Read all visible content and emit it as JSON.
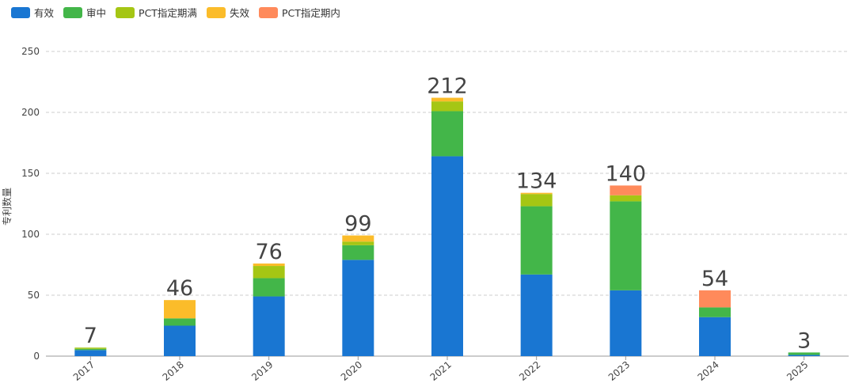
{
  "chart_data": {
    "type": "bar",
    "stacked": true,
    "categories": [
      "2017",
      "2018",
      "2019",
      "2020",
      "2021",
      "2022",
      "2023",
      "2024",
      "2025"
    ],
    "series": [
      {
        "name": "有效",
        "color": "#1976d2",
        "values": [
          5,
          25,
          49,
          79,
          164,
          67,
          54,
          32,
          1
        ]
      },
      {
        "name": "审中",
        "color": "#43b649",
        "values": [
          1,
          6,
          15,
          12,
          37,
          56,
          73,
          8,
          2
        ]
      },
      {
        "name": "PCT指定期满",
        "color": "#a5c614",
        "values": [
          1,
          0,
          10,
          3,
          8,
          10,
          5,
          0,
          0
        ]
      },
      {
        "name": "失效",
        "color": "#fbbc2a",
        "values": [
          0,
          15,
          2,
          5,
          3,
          1,
          0,
          0,
          0
        ]
      },
      {
        "name": "PCT指定期内",
        "color": "#ff8a5b",
        "values": [
          0,
          0,
          0,
          0,
          0,
          0,
          8,
          14,
          0
        ]
      }
    ],
    "totals": [
      "7",
      "46",
      "76",
      "99",
      "212",
      "134",
      "140",
      "54",
      "3"
    ],
    "ylabel": "专利数量",
    "ylim": [
      0,
      250
    ],
    "yticks": [
      "0",
      "50",
      "100",
      "150",
      "200",
      "250"
    ],
    "grid": true,
    "legend_position": "top-left"
  }
}
